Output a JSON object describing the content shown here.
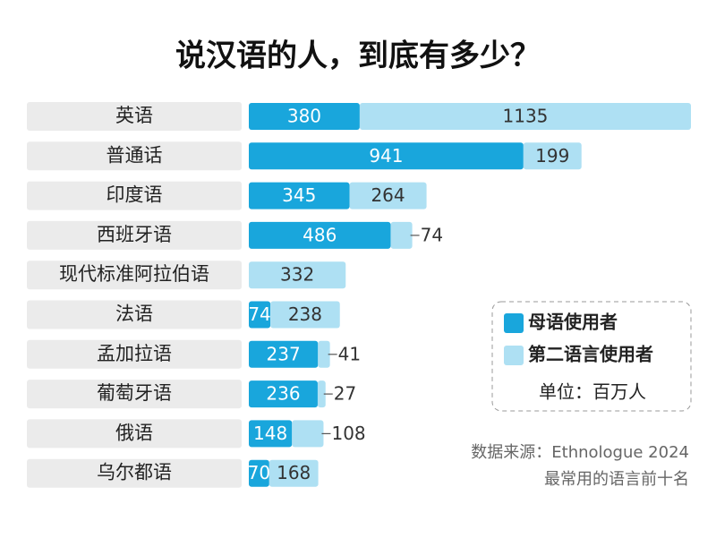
{
  "chart_data": {
    "type": "bar",
    "orientation": "horizontal",
    "stacked": true,
    "title": "说汉语的人，到底有多少？",
    "categories": [
      "英语",
      "普通话",
      "印度语",
      "西班牙语",
      "现代标准阿拉伯语",
      "法语",
      "孟加拉语",
      "葡萄牙语",
      "俄语",
      "乌尔都语"
    ],
    "series": [
      {
        "name": "母语使用者",
        "color": "#19a6dc",
        "values": [
          380,
          941,
          345,
          486,
          null,
          74,
          237,
          236,
          148,
          70
        ]
      },
      {
        "name": "第二语言使用者",
        "color": "#aee0f3",
        "values": [
          1135,
          199,
          264,
          74,
          332,
          238,
          41,
          27,
          108,
          168
        ]
      }
    ],
    "unit": "单位：百万人",
    "source": "数据来源：Ethnologue 2024",
    "note": "最常用的语言前十名"
  }
}
